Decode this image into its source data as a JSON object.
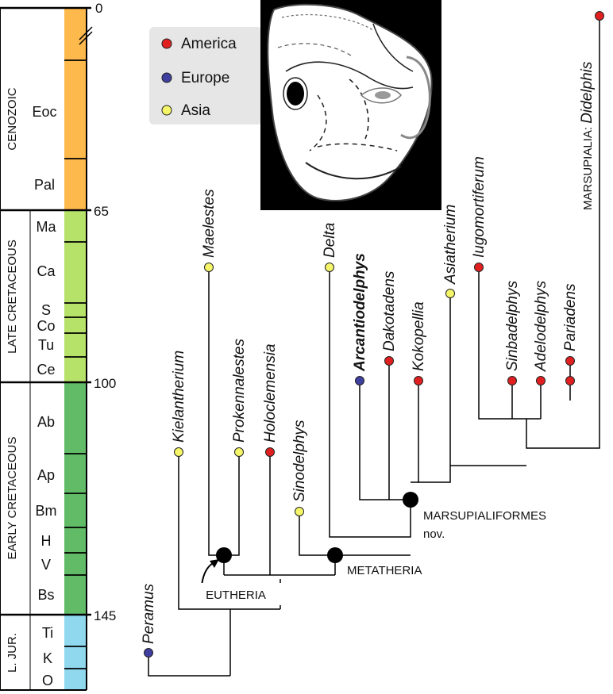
{
  "timescale": {
    "ages": [
      "0",
      "65",
      "100",
      "145"
    ],
    "eras": [
      "CENOZOIC",
      "LATE CRETACEOUS",
      "EARLY CRETACEOUS",
      "L. JUR."
    ],
    "stages": {
      "cenozoic": [
        "Eoc",
        "Pal"
      ],
      "late_cretaceous": [
        "Ma",
        "Ca",
        "S",
        "Co",
        "Tu",
        "Ce"
      ],
      "early_cretaceous": [
        "Ab",
        "Ap",
        "Bm",
        "H",
        "V",
        "Bs"
      ],
      "jurassic": [
        "Ti",
        "K",
        "O"
      ]
    },
    "colors": {
      "cenozoic": "#FDB94C",
      "late_cretaceous": "#B7E26A",
      "early_cretaceous": "#62BC67",
      "jurassic": "#8FD8EE"
    }
  },
  "legend": {
    "items": [
      {
        "label": "America",
        "color": "#E02020"
      },
      {
        "label": "Europe",
        "color": "#3F3F9F"
      },
      {
        "label": "Asia",
        "color": "#F5F56A"
      }
    ]
  },
  "taxa": {
    "peramus": "Peramus",
    "kielantherium": "Kielantherium",
    "maelestes": "Maelestes",
    "prokennalestes": "Prokennalestes",
    "holoclemensia": "Holoclemensia",
    "sinodelphys": "Sinodelphys",
    "deltatheridium": "Delta",
    "arcantiodelphys": "Arcantiodelphys",
    "dakotadens": "Dakotadens",
    "kokopellia": "Kokopellia",
    "asiatherium": "Asiatherium",
    "iugomortiferum": "Iugomortiferum",
    "sinbadelphys": "Sinbadelphys",
    "adelodelphys": "Adelodelphys",
    "pariadens": "Pariadens",
    "didelphis_prefix": "MARSUPIALIA: ",
    "didelphis": "Didelphis"
  },
  "clades": {
    "eutheria": "EUTHERIA",
    "metatheria": "METATHERIA",
    "marsupialiformes_line1": "MARSUPIALIFORMES",
    "marsupialiformes_line2": "nov."
  }
}
